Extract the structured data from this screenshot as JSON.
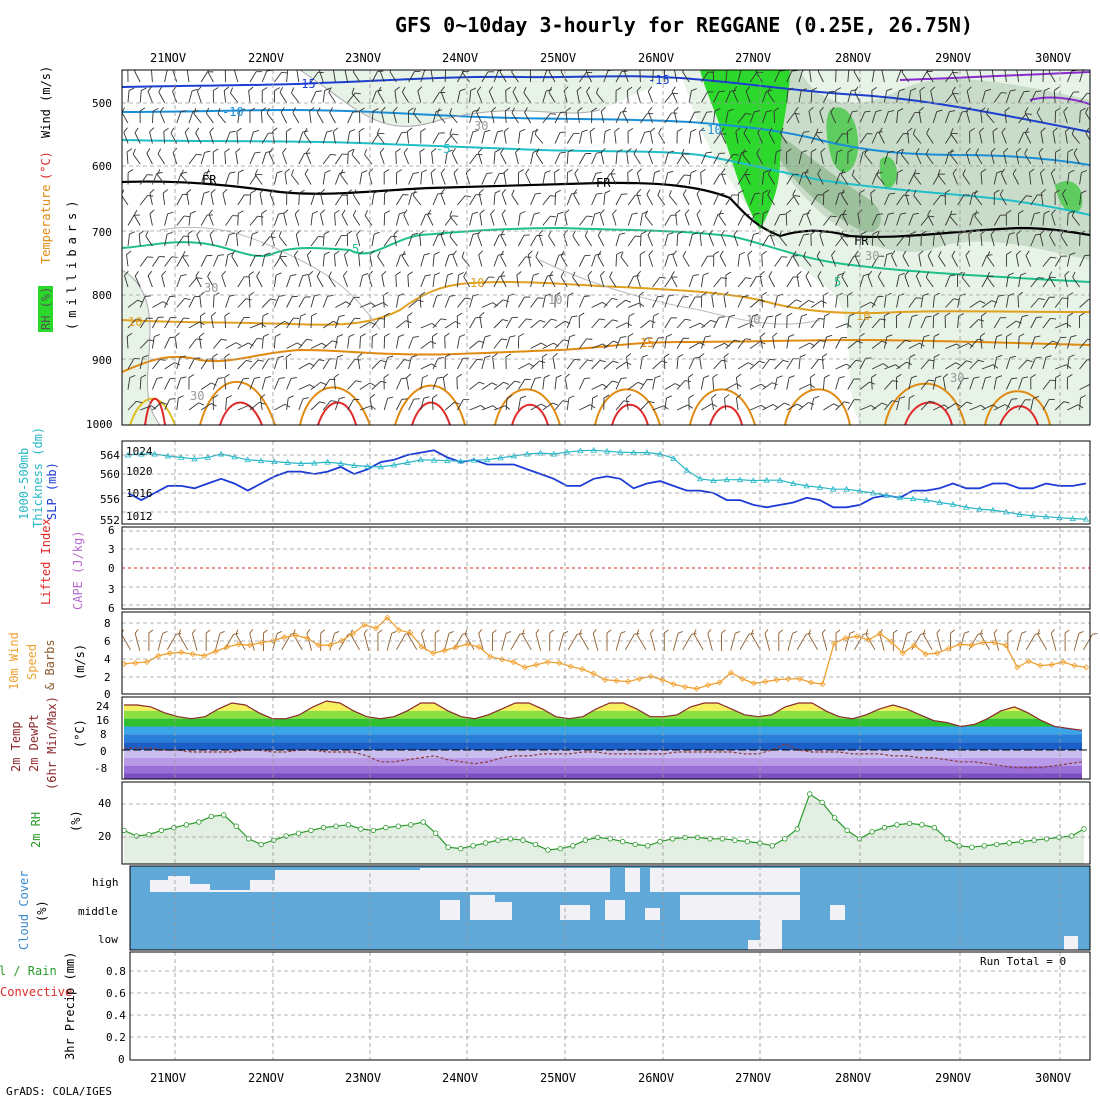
{
  "title": "GFS 0~10day 3-hourly for REGGANE (0.25E, 26.75N)",
  "credit": "GrADS: COLA/IGES",
  "dates": [
    "21NOV",
    "22NOV",
    "23NOV",
    "24NOV",
    "25NOV",
    "26NOV",
    "27NOV",
    "28NOV",
    "29NOV",
    "30NOV"
  ],
  "colors": {
    "rh_fill": "#2bd82b",
    "temp_cold": "#1d3fd1",
    "temp_mid": "#1fbfcf",
    "temp_warm": "#e08a10",
    "temp_hot": "#e02a2a",
    "thickness": "#1b3ad6",
    "slp": "#27b7c7",
    "wind10": "#f0a030",
    "rh2m": "#2a9a2a",
    "cloud": "#5fa8d8",
    "cloud_clear": "#f2f2f6"
  },
  "panels": {
    "upper": {
      "labels": {
        "rh": "RH (%)",
        "temperature": "Temperature",
        "temp_unit": "(°C)",
        "wind": "Wind (m/s)",
        "pressure": "(millibars)"
      },
      "yticks": [
        "500",
        "600",
        "700",
        "800",
        "900",
        "1000"
      ],
      "contours": [
        "-15",
        "-10",
        "-5",
        "FR",
        "5",
        "10",
        "15",
        "30",
        "10"
      ]
    },
    "thickness": {
      "labels": {
        "thickness": "1000-500mb",
        "thickness2": "Thickness (dm)",
        "slp": "SLP (mb)"
      },
      "left_ticks": [
        "564",
        "560",
        "556",
        "552"
      ],
      "right_ticks": [
        "1024",
        "1020",
        "1016",
        "1012"
      ]
    },
    "li": {
      "labels": {
        "li": "Lifted Index",
        "cape": "CAPE (J/kg)"
      },
      "ticks": [
        "6",
        "3",
        "0",
        "3",
        "6"
      ]
    },
    "wind10": {
      "labels": {
        "w1": "10m Wind",
        "w2": "Speed",
        "w3": "& Barbs",
        "unit": "(m/s)"
      },
      "ticks": [
        "8",
        "6",
        "4",
        "2",
        "0"
      ]
    },
    "temp2m": {
      "labels": {
        "t1": "2m Temp",
        "t2": "2m DewPt",
        "t3": "(6hr Min/Max)",
        "unit": "(°C)"
      },
      "ticks": [
        "24",
        "16",
        "8",
        "0",
        "-8"
      ]
    },
    "rh2m": {
      "labels": {
        "r1": "2m RH",
        "unit": "(%)"
      },
      "ticks": [
        "40",
        "20"
      ]
    },
    "cloud": {
      "labels": {
        "c1": "Cloud Cover",
        "unit": "(%)"
      },
      "levels": [
        "high",
        "middle",
        "low"
      ]
    },
    "precip": {
      "labels": {
        "p1": "Total / Rain",
        "p2": "Convective",
        "p3": "3hr Precip (mm)"
      },
      "ticks": [
        "0.8",
        "0.6",
        "0.4",
        "0.2",
        "0"
      ],
      "run_total": "Run Total = 0"
    }
  },
  "chart_data": [
    {
      "type": "line",
      "title": "1000-500mb Thickness (dm) / SLP (mb)",
      "x_unit": "3-hourly steps from 20NOV 12Z",
      "series": [
        {
          "name": "1000-500mb Thickness (dm)",
          "values": [
            556,
            554.5,
            556,
            557.5,
            557.5,
            557,
            558,
            559,
            558,
            556.5,
            558,
            559.5,
            560.5,
            560.5,
            560,
            560.5,
            561.5,
            560,
            561,
            562.5,
            563,
            564,
            564.5,
            565,
            563.5,
            562.5,
            563,
            562,
            562,
            562,
            561,
            560,
            559,
            557.5,
            557.5,
            559,
            559.5,
            559,
            557,
            558,
            558.5,
            557.5,
            556.5,
            556.5,
            556,
            554.5,
            554.5,
            553.5,
            553,
            553.5,
            554,
            555,
            554.5,
            553,
            553,
            553.5,
            555,
            555.5,
            555,
            556.5,
            556.5,
            557,
            558,
            557,
            557,
            558,
            558,
            557,
            557,
            558,
            557.5,
            557.5,
            558
          ]
        },
        {
          "name": "SLP (mb)",
          "values": [
            1024,
            1024.2,
            1024.2,
            1023.8,
            1023.5,
            1023.2,
            1023.5,
            1024.2,
            1023.6,
            1023,
            1022.8,
            1022.6,
            1022.4,
            1022.2,
            1022.3,
            1022.5,
            1022.2,
            1021.8,
            1021.6,
            1021.5,
            1021.9,
            1022.4,
            1023,
            1022.9,
            1022.8,
            1022.7,
            1022.9,
            1023,
            1023.4,
            1023.8,
            1024.2,
            1024.4,
            1024.2,
            1024.6,
            1024.9,
            1025,
            1024.8,
            1024.6,
            1024.5,
            1024.5,
            1024.2,
            1023.3,
            1020.8,
            1019,
            1018.6,
            1018.8,
            1018.8,
            1018.6,
            1018.7,
            1018.7,
            1018,
            1017.5,
            1017.2,
            1016.8,
            1016.8,
            1016.4,
            1016,
            1015.5,
            1015,
            1014.8,
            1014.5,
            1014,
            1013.6,
            1013,
            1012.6,
            1012.4,
            1012,
            1011.5,
            1011.2,
            1011,
            1010.8,
            1010.6,
            1010.5
          ]
        }
      ],
      "ylim_thickness": [
        552,
        566
      ],
      "ylim_slp": [
        1010,
        1026
      ]
    },
    {
      "type": "line",
      "title": "10m Wind Speed (m/s)",
      "values": [
        3.4,
        3.5,
        3.6,
        4.3,
        4.6,
        4.7,
        4.5,
        4.3,
        4.8,
        5.3,
        5.6,
        5.5,
        5.8,
        6,
        6.4,
        6.6,
        6.3,
        5.5,
        5.5,
        6,
        6.8,
        7.8,
        7.4,
        8.6,
        7.2,
        6.9,
        5.3,
        4.6,
        4.9,
        5.3,
        5.6,
        5.3,
        4.2,
        3.9,
        3.6,
        3,
        3.3,
        3.6,
        3.5,
        3.1,
        2.8,
        2.3,
        1.6,
        1.5,
        1.4,
        1.7,
        2,
        1.6,
        1.1,
        0.8,
        0.6,
        1,
        1.3,
        2.4,
        1.7,
        1.2,
        1.4,
        1.6,
        1.7,
        1.7,
        1.3,
        1.1,
        5.7,
        6.3,
        6.5,
        6.1,
        6.8,
        5.9,
        4.6,
        5.5,
        4.5,
        4.6,
        5.1,
        5.6,
        5.5,
        5.8,
        5.8,
        5.5,
        3,
        3.7,
        3.2,
        3.3,
        3.6,
        3.2,
        3
      ],
      "ylim": [
        0,
        9
      ]
    },
    {
      "type": "area",
      "title": "2m RH (%)",
      "values": [
        24,
        20,
        21,
        24,
        26,
        28,
        30,
        34,
        35,
        27,
        18,
        14,
        17,
        20,
        22,
        24,
        26,
        27,
        28,
        25,
        24,
        26,
        27,
        28,
        30,
        22,
        12,
        11,
        13,
        15,
        17,
        18,
        17,
        14,
        10,
        11,
        13,
        17,
        19,
        18,
        16,
        14,
        13,
        16,
        18,
        19,
        19,
        18,
        18,
        17,
        16,
        15,
        13,
        18,
        25,
        50,
        44,
        33,
        24,
        18,
        23,
        26,
        28,
        29,
        28,
        26,
        18,
        13,
        12,
        13,
        14,
        15,
        16,
        17,
        18,
        19,
        20,
        25
      ],
      "ylim": [
        0,
        55
      ]
    },
    {
      "type": "area",
      "title": "2m Temp / 2m DewPt (°C)",
      "series": [
        {
          "name": "2m Temp",
          "values": [
            23,
            23,
            22,
            19,
            17,
            16,
            17,
            21,
            24,
            23,
            19,
            16,
            16,
            18,
            22,
            25,
            24,
            20,
            17,
            16,
            17,
            20,
            24,
            24,
            20,
            17,
            16,
            18,
            21,
            24,
            24,
            21,
            17,
            16,
            17,
            21,
            24,
            24,
            21,
            17,
            17,
            18,
            22,
            24,
            24,
            21,
            18,
            17,
            18,
            22,
            24,
            24,
            20,
            17,
            16,
            18,
            21,
            23,
            21,
            18,
            15,
            14,
            12,
            13,
            16,
            20,
            22,
            19,
            15,
            12,
            11,
            10
          ]
        },
        {
          "name": "2m DewPt",
          "values": [
            1,
            1,
            1,
            0,
            0,
            -1,
            -1,
            -1,
            -1,
            0,
            0,
            -1,
            -1,
            0,
            0,
            -1,
            -1,
            -1,
            -3,
            -6,
            -6,
            -5,
            -4,
            -3,
            -5,
            -6,
            -7,
            -6,
            -4,
            -3,
            -3,
            -2,
            -2,
            -2,
            -1,
            -1,
            -2,
            -2,
            -2,
            -2,
            -2,
            -1,
            -1,
            -1,
            -1,
            -1,
            -2,
            -2,
            0,
            3,
            0,
            -1,
            -1,
            -1,
            -2,
            -2,
            -2,
            -3,
            -3,
            -4,
            -4,
            -5,
            -6,
            -6,
            -7,
            -8,
            -9,
            -9,
            -9,
            -8,
            -7,
            -6
          ]
        }
      ],
      "ylim": [
        -14,
        28
      ]
    }
  ]
}
